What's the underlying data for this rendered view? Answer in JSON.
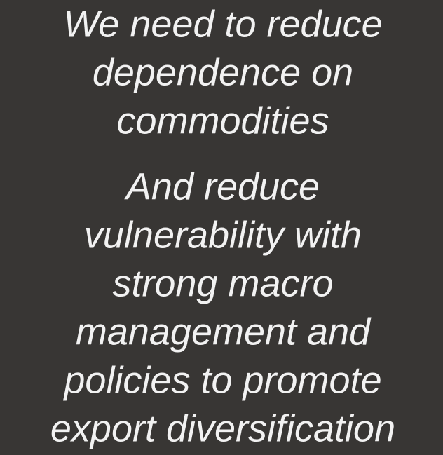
{
  "slide": {
    "paragraphs": [
      [
        "We need to reduce",
        "dependence on",
        "commodities"
      ],
      [
        "And reduce",
        "vulnerability with",
        "strong macro",
        "management and",
        "policies to promote",
        "export diversification"
      ]
    ]
  }
}
